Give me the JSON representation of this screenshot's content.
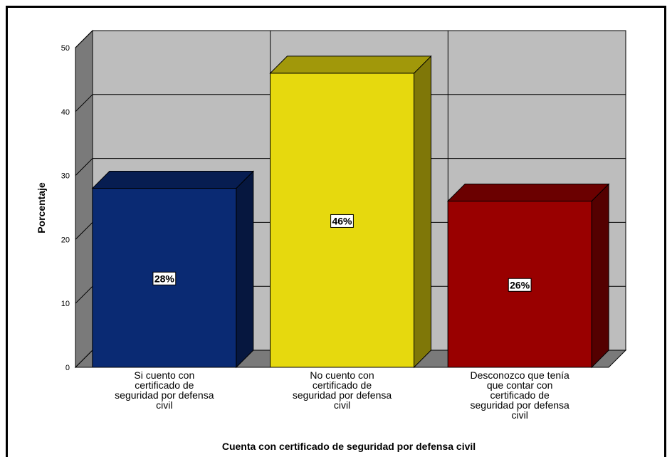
{
  "chart_data": {
    "type": "bar",
    "categories": [
      [
        "Si cuento con",
        "certificado de",
        "seguridad por defensa",
        "civil"
      ],
      [
        "No cuento con",
        "certificado de",
        "seguridad por defensa",
        "civil"
      ],
      [
        "Desconozco que tenía",
        "que contar con",
        "certificado de",
        "seguridad por defensa",
        "civil"
      ]
    ],
    "values": [
      28,
      46,
      26
    ],
    "data_labels": [
      "28%",
      "46%",
      "26%"
    ],
    "colors": [
      "#0a2a73",
      "#e6d90e",
      "#990000"
    ],
    "xlabel": "Cuenta con certificado de seguridad por defensa civil",
    "ylabel": "Porcentaje",
    "ylim": [
      0,
      50
    ],
    "yticks": [
      "0",
      "10",
      "20",
      "30",
      "40",
      "50"
    ],
    "grid": true,
    "style": "3d"
  }
}
